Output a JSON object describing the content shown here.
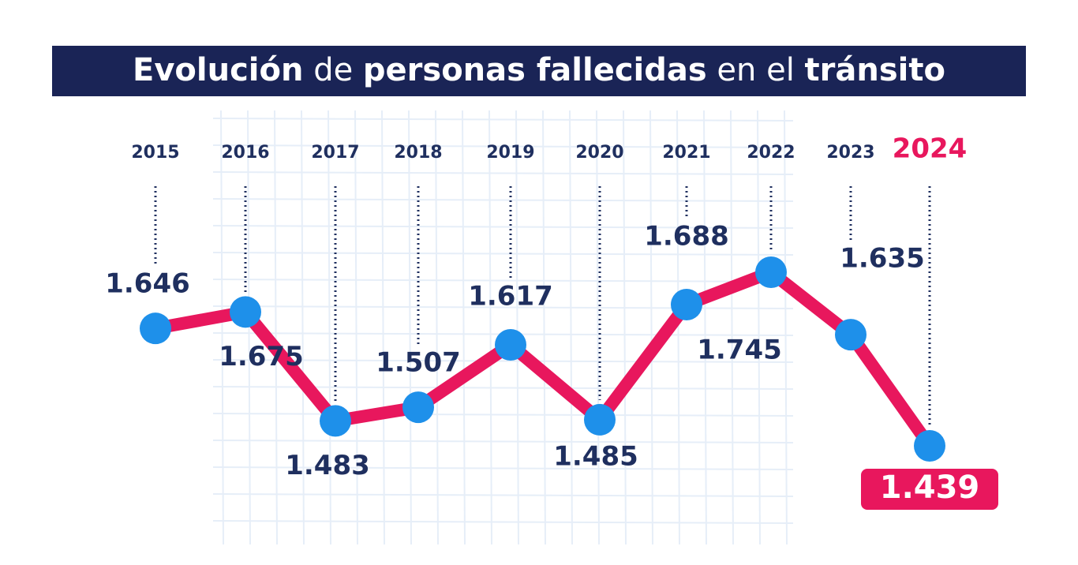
{
  "chart_data": {
    "type": "line",
    "title": [
      {
        "text": "Evolución",
        "bold": true
      },
      {
        "text": "de",
        "bold": false
      },
      {
        "text": "personas fallecidas",
        "bold": true
      },
      {
        "text": "en el",
        "bold": false
      },
      {
        "text": "tránsito",
        "bold": true
      }
    ],
    "categories": [
      "2015",
      "2016",
      "2017",
      "2018",
      "2019",
      "2020",
      "2021",
      "2022",
      "2023",
      "2024"
    ],
    "series": [
      {
        "color": "#e8175d",
        "marker_color": "#1e90ea",
        "values": [
          1646,
          1675,
          1483,
          1507,
          1617,
          1485,
          1688,
          1745,
          1635,
          1439
        ],
        "value_labels": [
          "1.646",
          "1.675",
          "1.483",
          "1.507",
          "1.617",
          "1.485",
          "1.688",
          "1.745",
          "1.635",
          "1.439"
        ]
      }
    ],
    "label_color": "#1f2f5f",
    "highlight_color": "#e8175d"
  }
}
